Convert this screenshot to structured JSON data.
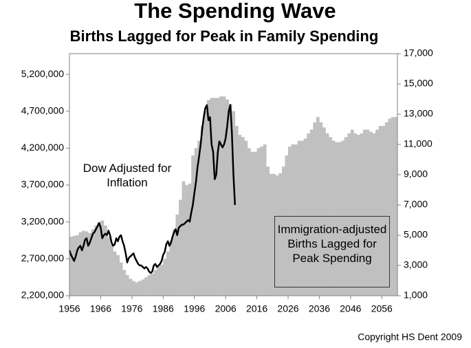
{
  "chart_data": {
    "type": "bar-line",
    "title": "The Spending Wave",
    "subtitle": "Births Lagged for Peak in Family Spending",
    "annotations": [
      "Dow Adjusted for Inflation"
    ],
    "copyright": "Copyright HS Dent 2009",
    "xlim": [
      1956,
      2061
    ],
    "xticks": [
      1956,
      1966,
      1976,
      1986,
      1996,
      2006,
      2016,
      2026,
      2036,
      2046,
      2056
    ],
    "ylim": [
      2200000,
      5480000
    ],
    "yticks": [
      {
        "value": 2200000,
        "label": "2,200,000"
      },
      {
        "value": 2700000,
        "label": "2,700,000"
      },
      {
        "value": 3200000,
        "label": "3,200,000"
      },
      {
        "value": 3700000,
        "label": "3,700,000"
      },
      {
        "value": 4200000,
        "label": "4,200,000"
      },
      {
        "value": 4700000,
        "label": "4,700,000"
      },
      {
        "value": 5200000,
        "label": "5,200,000"
      }
    ],
    "y2lim": [
      1000,
      17000
    ],
    "y2ticks": [
      {
        "value": 1000,
        "label": "1,000"
      },
      {
        "value": 3000,
        "label": "3,000"
      },
      {
        "value": 5000,
        "label": "5,000"
      },
      {
        "value": 7000,
        "label": "7,000"
      },
      {
        "value": 9000,
        "label": "9,000"
      },
      {
        "value": 11000,
        "label": "11,000"
      },
      {
        "value": 13000,
        "label": "13,000"
      },
      {
        "value": 15000,
        "label": "15,000"
      },
      {
        "value": 17000,
        "label": "17,000"
      }
    ],
    "series": [
      {
        "name": "Immigration-adjusted Births Lagged for Peak Spending",
        "type": "bar",
        "axis": "y",
        "color": "#c0c0c0",
        "x": [
          1956,
          1957,
          1958,
          1959,
          1960,
          1961,
          1962,
          1963,
          1964,
          1965,
          1966,
          1967,
          1968,
          1969,
          1970,
          1971,
          1972,
          1973,
          1974,
          1975,
          1976,
          1977,
          1978,
          1979,
          1980,
          1981,
          1982,
          1983,
          1984,
          1985,
          1986,
          1987,
          1988,
          1989,
          1990,
          1991,
          1992,
          1993,
          1994,
          1995,
          1996,
          1997,
          1998,
          1999,
          2000,
          2001,
          2002,
          2003,
          2004,
          2005,
          2006,
          2007,
          2008,
          2009,
          2010,
          2011,
          2012,
          2013,
          2014,
          2015,
          2016,
          2017,
          2018,
          2019,
          2020,
          2021,
          2022,
          2023,
          2024,
          2025,
          2026,
          2027,
          2028,
          2029,
          2030,
          2031,
          2032,
          2033,
          2034,
          2035,
          2036,
          2037,
          2038,
          2039,
          2040,
          2041,
          2042,
          2043,
          2044,
          2045,
          2046,
          2047,
          2048,
          2049,
          2050,
          2051,
          2052,
          2053,
          2054,
          2055,
          2056,
          2057,
          2058,
          2059,
          2060
        ],
        "values": [
          3000000,
          3010000,
          3020000,
          3060000,
          3080000,
          3070000,
          3050000,
          3100000,
          3150000,
          3200000,
          3220000,
          3150000,
          3000000,
          2900000,
          2800000,
          2750000,
          2650000,
          2550000,
          2480000,
          2430000,
          2400000,
          2380000,
          2400000,
          2420000,
          2450000,
          2480000,
          2500000,
          2550000,
          2600000,
          2620000,
          2700000,
          2800000,
          2950000,
          3100000,
          3300000,
          3500000,
          3750000,
          3700000,
          3720000,
          4100000,
          4200000,
          4300000,
          4500000,
          4700000,
          4850000,
          4880000,
          4880000,
          4880000,
          4900000,
          4900000,
          4860000,
          4800000,
          4700000,
          4500000,
          4380000,
          4350000,
          4300000,
          4200000,
          4150000,
          4150000,
          4200000,
          4220000,
          4250000,
          3950000,
          3850000,
          3850000,
          3830000,
          3860000,
          3950000,
          4100000,
          4220000,
          4250000,
          4250000,
          4300000,
          4300000,
          4330000,
          4400000,
          4450000,
          4550000,
          4620000,
          4550000,
          4480000,
          4400000,
          4350000,
          4300000,
          4280000,
          4280000,
          4300000,
          4350000,
          4400000,
          4450000,
          4400000,
          4380000,
          4400000,
          4450000,
          4450000,
          4420000,
          4400000,
          4450000,
          4500000,
          4500000,
          4550000,
          4600000,
          4620000,
          4620000
        ]
      },
      {
        "name": "Dow",
        "type": "line",
        "axis": "y2",
        "color": "#000000",
        "x": [
          1956,
          1956.5,
          1957,
          1957.5,
          1958,
          1958.5,
          1959,
          1959.5,
          1960,
          1960.5,
          1961,
          1961.5,
          1962,
          1962.5,
          1963,
          1963.5,
          1964,
          1964.5,
          1965,
          1965.5,
          1966,
          1966.5,
          1967,
          1967.5,
          1968,
          1968.5,
          1969,
          1969.5,
          1970,
          1970.5,
          1971,
          1971.5,
          1972,
          1972.5,
          1973,
          1973.5,
          1974,
          1974.5,
          1975,
          1975.5,
          1976,
          1976.5,
          1977,
          1977.5,
          1978,
          1978.5,
          1979,
          1979.5,
          1980,
          1980.5,
          1981,
          1981.5,
          1982,
          1982.5,
          1983,
          1983.5,
          1984,
          1984.5,
          1985,
          1985.5,
          1986,
          1986.5,
          1987,
          1987.5,
          1988,
          1988.5,
          1989,
          1989.5,
          1990,
          1990.5,
          1991,
          1991.5,
          1992,
          1992.5,
          1993,
          1993.5,
          1994,
          1994.5,
          1995,
          1995.5,
          1996,
          1996.5,
          1997,
          1997.5,
          1998,
          1998.5,
          1999,
          1999.5,
          2000,
          2000.5,
          2001,
          2001.5,
          2002,
          2002.5,
          2003,
          2003.5,
          2004,
          2004.5,
          2005,
          2005.5,
          2006,
          2006.5,
          2007,
          2007.5,
          2008,
          2008.5,
          2009
        ],
        "values": [
          4000,
          3700,
          3500,
          3300,
          3600,
          4000,
          4200,
          4300,
          4000,
          4300,
          4700,
          4800,
          4300,
          4500,
          4800,
          5100,
          5200,
          5400,
          5600,
          5800,
          5500,
          4800,
          5000,
          5100,
          5000,
          5300,
          5000,
          4500,
          4300,
          4400,
          4800,
          4600,
          4900,
          5000,
          4600,
          4300,
          3800,
          3200,
          3500,
          3600,
          3700,
          3800,
          3500,
          3300,
          3100,
          3000,
          3000,
          2900,
          2800,
          2900,
          2800,
          2600,
          2500,
          2600,
          3000,
          3100,
          2900,
          3000,
          3100,
          3300,
          3700,
          3900,
          4400,
          4600,
          4300,
          4500,
          4900,
          5200,
          5400,
          5000,
          5500,
          5600,
          5700,
          5700,
          5800,
          5900,
          6000,
          5900,
          6500,
          7000,
          7800,
          8500,
          9500,
          10200,
          11000,
          12000,
          12800,
          13400,
          13600,
          12600,
          12800,
          11000,
          10500,
          8700,
          9000,
          10500,
          11200,
          11000,
          10800,
          11000,
          11400,
          12200,
          13200,
          13600,
          11800,
          9000,
          7000
        ]
      }
    ]
  }
}
